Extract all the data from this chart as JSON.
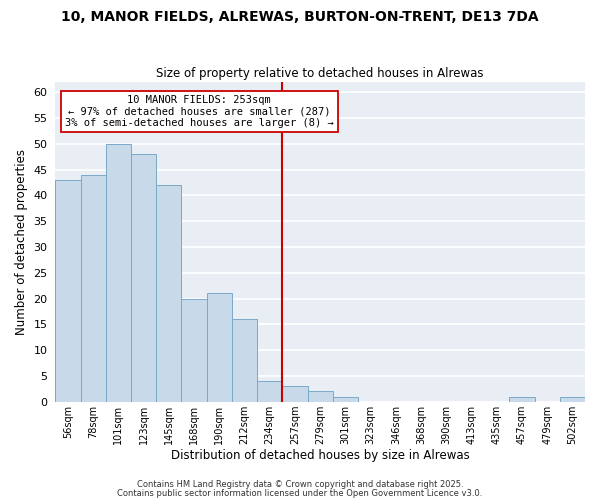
{
  "title": "10, MANOR FIELDS, ALREWAS, BURTON-ON-TRENT, DE13 7DA",
  "subtitle": "Size of property relative to detached houses in Alrewas",
  "xlabel": "Distribution of detached houses by size in Alrewas",
  "ylabel": "Number of detached properties",
  "bar_color": "#c8daea",
  "bar_edge_color": "#7aaac8",
  "bg_color": "#e8eef4",
  "plot_bg_color": "#e8eef4",
  "grid_color": "#ffffff",
  "bin_labels": [
    "56sqm",
    "78sqm",
    "101sqm",
    "123sqm",
    "145sqm",
    "168sqm",
    "190sqm",
    "212sqm",
    "234sqm",
    "257sqm",
    "279sqm",
    "301sqm",
    "323sqm",
    "346sqm",
    "368sqm",
    "390sqm",
    "413sqm",
    "435sqm",
    "457sqm",
    "479sqm",
    "502sqm"
  ],
  "bar_heights": [
    43,
    44,
    50,
    48,
    42,
    20,
    21,
    16,
    4,
    3,
    2,
    1,
    0,
    0,
    0,
    0,
    0,
    0,
    1,
    0,
    1
  ],
  "ylim": [
    0,
    62
  ],
  "yticks": [
    0,
    5,
    10,
    15,
    20,
    25,
    30,
    35,
    40,
    45,
    50,
    55,
    60
  ],
  "vline_x": 9.0,
  "vline_color": "#cc0000",
  "annotation_title": "10 MANOR FIELDS: 253sqm",
  "annotation_line1": "← 97% of detached houses are smaller (287)",
  "annotation_line2": "3% of semi-detached houses are larger (8) →",
  "footer1": "Contains HM Land Registry data © Crown copyright and database right 2025.",
  "footer2": "Contains public sector information licensed under the Open Government Licence v3.0."
}
